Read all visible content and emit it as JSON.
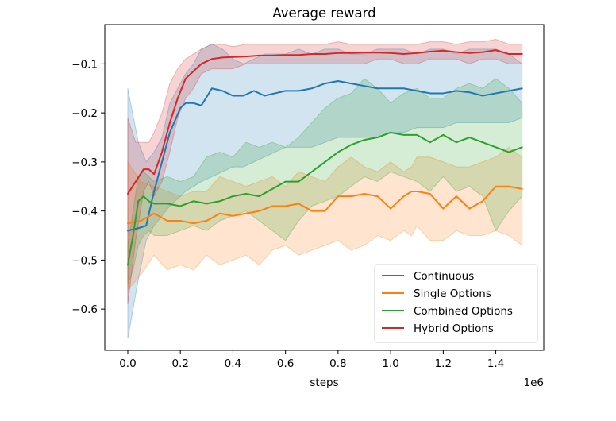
{
  "chart_data": {
    "type": "line",
    "title": "Average reward",
    "xlabel": "steps",
    "ylabel": "",
    "x_offset_label": "1e6",
    "xlim": [
      -0.0875,
      1.5825
    ],
    "ylim": [
      -0.684,
      -0.02
    ],
    "xticks": [
      0.0,
      0.2,
      0.4,
      0.6,
      0.8,
      1.0,
      1.2,
      1.4
    ],
    "xtick_labels": [
      "0.0",
      "0.2",
      "0.4",
      "0.6",
      "0.8",
      "1.0",
      "1.2",
      "1.4"
    ],
    "yticks": [
      -0.1,
      -0.2,
      -0.3,
      -0.4,
      -0.5,
      -0.6
    ],
    "ytick_labels": [
      "−0.1",
      "−0.2",
      "−0.3",
      "−0.4",
      "−0.5",
      "−0.6"
    ],
    "legend_position": "bottom-right",
    "series": [
      {
        "name": "Continuous",
        "color": "#1f77b4",
        "x": [
          0.0,
          0.04,
          0.07,
          0.1,
          0.13,
          0.16,
          0.2,
          0.22,
          0.25,
          0.28,
          0.32,
          0.36,
          0.4,
          0.44,
          0.48,
          0.52,
          0.56,
          0.6,
          0.65,
          0.7,
          0.75,
          0.8,
          0.85,
          0.9,
          0.95,
          1.0,
          1.05,
          1.1,
          1.15,
          1.2,
          1.25,
          1.3,
          1.35,
          1.4,
          1.45,
          1.5
        ],
        "y": [
          -0.44,
          -0.435,
          -0.43,
          -0.36,
          -0.3,
          -0.24,
          -0.19,
          -0.18,
          -0.18,
          -0.185,
          -0.15,
          -0.155,
          -0.165,
          -0.165,
          -0.155,
          -0.165,
          -0.16,
          -0.155,
          -0.155,
          -0.15,
          -0.14,
          -0.135,
          -0.14,
          -0.145,
          -0.15,
          -0.15,
          -0.15,
          -0.155,
          -0.16,
          -0.16,
          -0.155,
          -0.158,
          -0.165,
          -0.16,
          -0.155,
          -0.15
        ],
        "low": [
          -0.66,
          -0.54,
          -0.46,
          -0.43,
          -0.41,
          -0.39,
          -0.37,
          -0.36,
          -0.35,
          -0.34,
          -0.33,
          -0.32,
          -0.31,
          -0.31,
          -0.3,
          -0.29,
          -0.28,
          -0.27,
          -0.27,
          -0.27,
          -0.26,
          -0.25,
          -0.25,
          -0.25,
          -0.25,
          -0.24,
          -0.24,
          -0.23,
          -0.23,
          -0.23,
          -0.22,
          -0.22,
          -0.22,
          -0.22,
          -0.22,
          -0.21
        ],
        "high": [
          -0.15,
          -0.26,
          -0.3,
          -0.28,
          -0.25,
          -0.18,
          -0.14,
          -0.12,
          -0.1,
          -0.07,
          -0.06,
          -0.07,
          -0.09,
          -0.1,
          -0.09,
          -0.08,
          -0.08,
          -0.08,
          -0.07,
          -0.08,
          -0.07,
          -0.07,
          -0.08,
          -0.08,
          -0.07,
          -0.07,
          -0.07,
          -0.08,
          -0.07,
          -0.07,
          -0.08,
          -0.07,
          -0.07,
          -0.07,
          -0.08,
          -0.1
        ]
      },
      {
        "name": "Single Options",
        "color": "#ff7f0e",
        "x": [
          0.0,
          0.05,
          0.1,
          0.15,
          0.2,
          0.25,
          0.3,
          0.35,
          0.4,
          0.45,
          0.5,
          0.55,
          0.6,
          0.65,
          0.7,
          0.75,
          0.8,
          0.85,
          0.9,
          0.95,
          1.0,
          1.05,
          1.08,
          1.1,
          1.15,
          1.2,
          1.25,
          1.3,
          1.35,
          1.4,
          1.45,
          1.5
        ],
        "y": [
          -0.425,
          -0.42,
          -0.405,
          -0.42,
          -0.42,
          -0.425,
          -0.42,
          -0.405,
          -0.41,
          -0.405,
          -0.4,
          -0.39,
          -0.39,
          -0.385,
          -0.4,
          -0.4,
          -0.37,
          -0.37,
          -0.365,
          -0.37,
          -0.395,
          -0.37,
          -0.36,
          -0.36,
          -0.365,
          -0.395,
          -0.37,
          -0.395,
          -0.38,
          -0.35,
          -0.35,
          -0.355
        ],
        "low": [
          -0.56,
          -0.53,
          -0.49,
          -0.52,
          -0.51,
          -0.52,
          -0.49,
          -0.51,
          -0.5,
          -0.49,
          -0.51,
          -0.48,
          -0.47,
          -0.49,
          -0.48,
          -0.47,
          -0.46,
          -0.48,
          -0.47,
          -0.45,
          -0.46,
          -0.44,
          -0.45,
          -0.43,
          -0.46,
          -0.46,
          -0.44,
          -0.45,
          -0.45,
          -0.44,
          -0.45,
          -0.47
        ],
        "high": [
          -0.3,
          -0.34,
          -0.35,
          -0.36,
          -0.37,
          -0.36,
          -0.36,
          -0.33,
          -0.34,
          -0.35,
          -0.34,
          -0.33,
          -0.35,
          -0.32,
          -0.33,
          -0.34,
          -0.31,
          -0.29,
          -0.31,
          -0.32,
          -0.3,
          -0.32,
          -0.31,
          -0.29,
          -0.29,
          -0.3,
          -0.31,
          -0.31,
          -0.3,
          -0.29,
          -0.27,
          -0.29
        ]
      },
      {
        "name": "Combined Options",
        "color": "#2ca02c",
        "x": [
          0.0,
          0.02,
          0.04,
          0.06,
          0.08,
          0.1,
          0.15,
          0.2,
          0.25,
          0.3,
          0.35,
          0.4,
          0.45,
          0.5,
          0.55,
          0.6,
          0.65,
          0.7,
          0.75,
          0.8,
          0.85,
          0.9,
          0.95,
          1.0,
          1.05,
          1.1,
          1.15,
          1.2,
          1.25,
          1.3,
          1.35,
          1.4,
          1.45,
          1.5
        ],
        "y": [
          -0.51,
          -0.45,
          -0.38,
          -0.37,
          -0.38,
          -0.385,
          -0.385,
          -0.39,
          -0.38,
          -0.385,
          -0.38,
          -0.37,
          -0.365,
          -0.37,
          -0.355,
          -0.34,
          -0.34,
          -0.32,
          -0.3,
          -0.28,
          -0.265,
          -0.255,
          -0.25,
          -0.24,
          -0.245,
          -0.245,
          -0.26,
          -0.245,
          -0.26,
          -0.25,
          -0.26,
          -0.27,
          -0.28,
          -0.27
        ],
        "low": [
          -0.55,
          -0.52,
          -0.47,
          -0.45,
          -0.44,
          -0.45,
          -0.45,
          -0.44,
          -0.43,
          -0.44,
          -0.42,
          -0.41,
          -0.4,
          -0.42,
          -0.44,
          -0.46,
          -0.42,
          -0.39,
          -0.38,
          -0.37,
          -0.35,
          -0.33,
          -0.34,
          -0.32,
          -0.33,
          -0.34,
          -0.36,
          -0.33,
          -0.36,
          -0.35,
          -0.37,
          -0.44,
          -0.4,
          -0.37
        ],
        "high": [
          -0.47,
          -0.4,
          -0.33,
          -0.32,
          -0.33,
          -0.34,
          -0.33,
          -0.34,
          -0.33,
          -0.29,
          -0.28,
          -0.29,
          -0.26,
          -0.27,
          -0.26,
          -0.27,
          -0.25,
          -0.22,
          -0.19,
          -0.17,
          -0.16,
          -0.13,
          -0.15,
          -0.18,
          -0.16,
          -0.15,
          -0.17,
          -0.17,
          -0.15,
          -0.14,
          -0.15,
          -0.13,
          -0.15,
          -0.18
        ]
      },
      {
        "name": "Hybrid Options",
        "color": "#d62728",
        "x": [
          0.0,
          0.03,
          0.06,
          0.08,
          0.1,
          0.13,
          0.16,
          0.19,
          0.22,
          0.25,
          0.28,
          0.32,
          0.36,
          0.4,
          0.45,
          0.5,
          0.55,
          0.6,
          0.65,
          0.7,
          0.75,
          0.8,
          0.85,
          0.9,
          0.95,
          1.0,
          1.05,
          1.1,
          1.15,
          1.2,
          1.25,
          1.3,
          1.35,
          1.4,
          1.45,
          1.5
        ],
        "y": [
          -0.365,
          -0.34,
          -0.315,
          -0.315,
          -0.325,
          -0.28,
          -0.22,
          -0.17,
          -0.13,
          -0.115,
          -0.1,
          -0.09,
          -0.087,
          -0.086,
          -0.085,
          -0.083,
          -0.083,
          -0.082,
          -0.082,
          -0.08,
          -0.08,
          -0.078,
          -0.078,
          -0.077,
          -0.077,
          -0.078,
          -0.08,
          -0.078,
          -0.075,
          -0.073,
          -0.076,
          -0.078,
          -0.076,
          -0.072,
          -0.08,
          -0.08
        ],
        "low": [
          -0.59,
          -0.46,
          -0.36,
          -0.34,
          -0.37,
          -0.34,
          -0.28,
          -0.21,
          -0.17,
          -0.15,
          -0.12,
          -0.11,
          -0.11,
          -0.11,
          -0.1,
          -0.1,
          -0.1,
          -0.1,
          -0.1,
          -0.1,
          -0.1,
          -0.1,
          -0.1,
          -0.1,
          -0.09,
          -0.09,
          -0.1,
          -0.1,
          -0.09,
          -0.09,
          -0.09,
          -0.1,
          -0.09,
          -0.09,
          -0.1,
          -0.1
        ],
        "high": [
          -0.21,
          -0.26,
          -0.26,
          -0.26,
          -0.24,
          -0.2,
          -0.14,
          -0.11,
          -0.09,
          -0.08,
          -0.07,
          -0.06,
          -0.06,
          -0.065,
          -0.06,
          -0.06,
          -0.06,
          -0.06,
          -0.06,
          -0.06,
          -0.06,
          -0.055,
          -0.06,
          -0.06,
          -0.06,
          -0.06,
          -0.06,
          -0.06,
          -0.055,
          -0.055,
          -0.06,
          -0.055,
          -0.055,
          -0.05,
          -0.06,
          -0.06
        ]
      }
    ]
  }
}
